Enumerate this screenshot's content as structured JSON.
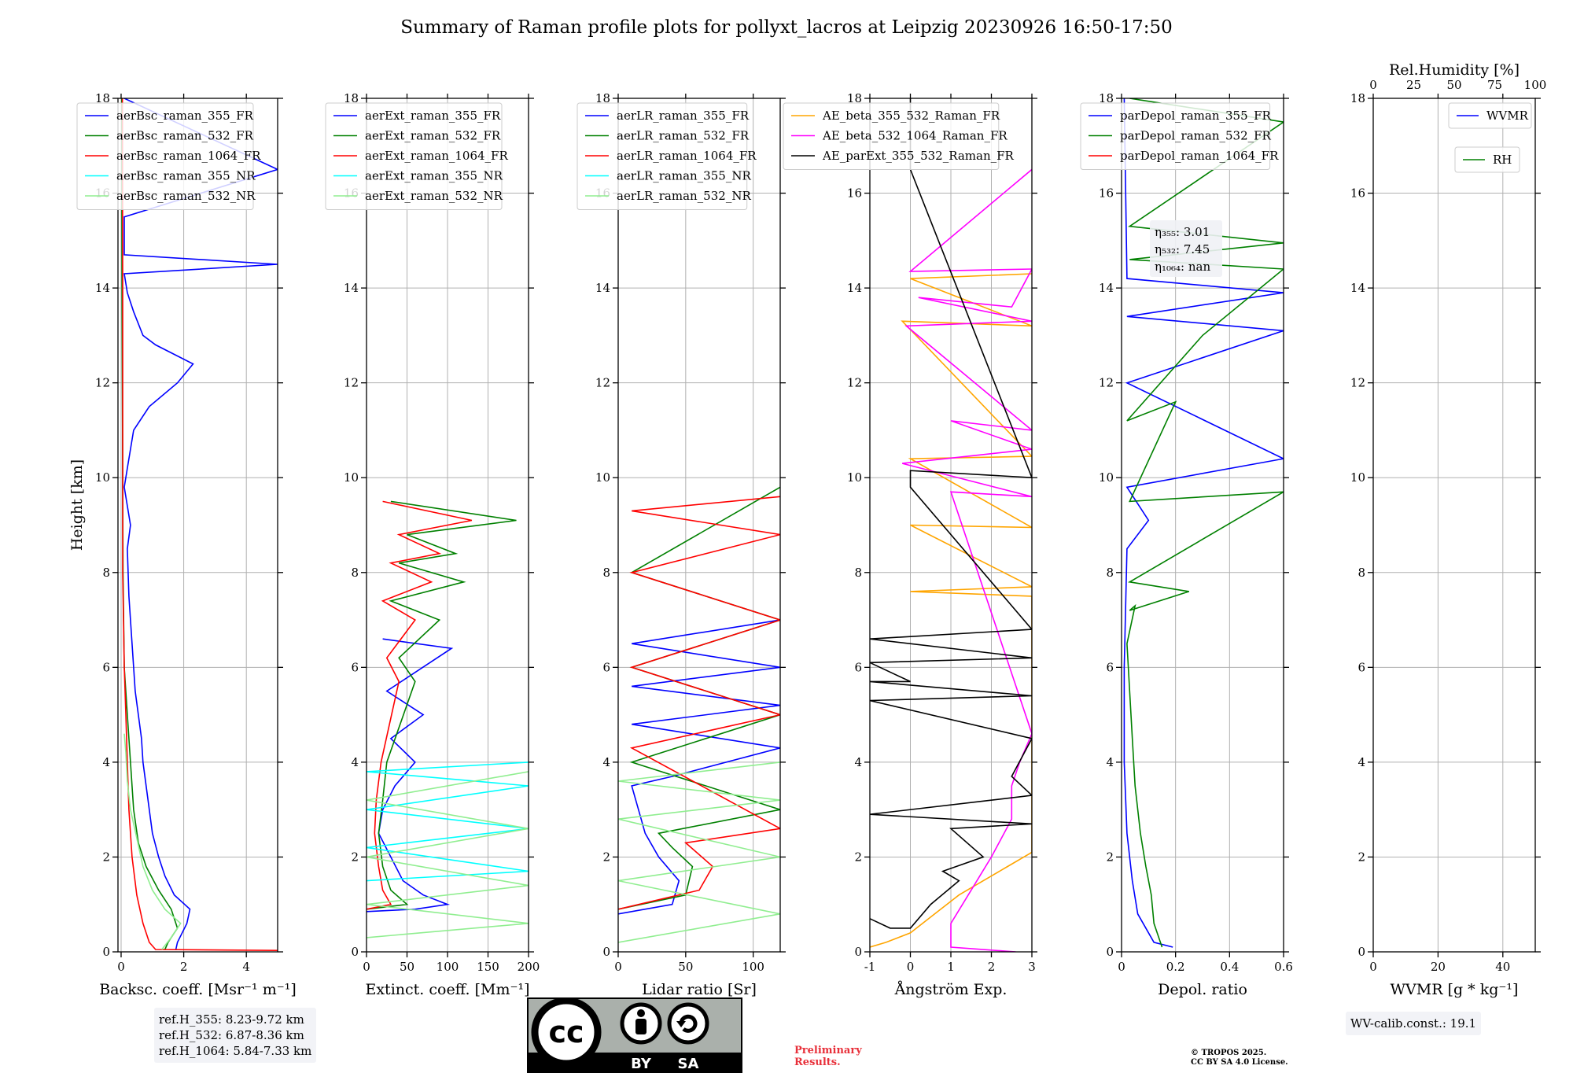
{
  "figure": {
    "title": "Summary of Raman profile plots for pollyxt_lacros at Leipzig 20230926 16:50-17:50",
    "ylabel": "Height [km]"
  },
  "chart_data": [
    {
      "type": "line",
      "xlabel": "Backsc. coeff. [Msr⁻¹ m⁻¹]",
      "ylabel": "Height [km]",
      "xlim": [
        -0.1,
        5
      ],
      "ylim": [
        0,
        18
      ],
      "xticks": [
        0,
        2,
        4
      ],
      "yticks": [
        0,
        2,
        4,
        6,
        8,
        10,
        12,
        14,
        16,
        18
      ],
      "grid": true,
      "legend": "top",
      "series": [
        {
          "name": "aerBsc_raman_355_FR",
          "color": "#0000ff",
          "x": [
            1.75,
            1.8,
            2.1,
            2.2,
            1.7,
            1.4,
            1.2,
            1.0,
            0.9,
            0.8,
            0.7,
            0.65,
            0.45,
            0.35,
            0.25,
            0.2,
            0.3,
            0.1,
            0.2,
            0.4,
            0.9,
            1.8,
            2.3,
            1.1,
            0.7,
            0.4,
            0.2,
            0.1,
            5.0,
            0.1,
            0.1,
            5.0,
            0.1
          ],
          "y": [
            0.05,
            0.2,
            0.6,
            0.9,
            1.2,
            1.6,
            2.0,
            2.5,
            3.0,
            3.5,
            4.0,
            4.5,
            5.5,
            6.5,
            7.5,
            8.5,
            9.0,
            9.8,
            10.2,
            11.0,
            11.5,
            12.0,
            12.4,
            12.8,
            13.0,
            13.5,
            13.9,
            14.3,
            14.5,
            14.7,
            15.5,
            16.5,
            18.0
          ]
        },
        {
          "name": "aerBsc_raman_532_FR",
          "color": "#008000",
          "x": [
            1.4,
            1.5,
            1.8,
            1.6,
            1.2,
            0.8,
            0.55,
            0.4,
            0.3,
            0.2,
            0.1,
            0.06,
            0.05,
            0.03,
            0.02
          ],
          "y": [
            0.05,
            0.2,
            0.5,
            0.9,
            1.3,
            1.8,
            2.3,
            3.0,
            4.0,
            5.0,
            6.0,
            8.0,
            10.0,
            14.0,
            18.0
          ]
        },
        {
          "name": "aerBsc_raman_1064_FR",
          "color": "#ff0000",
          "x": [
            5.0,
            1.1,
            0.9,
            0.7,
            0.5,
            0.35,
            0.25,
            0.2,
            0.15,
            0.1,
            0.05,
            0.05,
            0.05,
            0.04
          ],
          "y": [
            0.03,
            0.05,
            0.2,
            0.6,
            1.2,
            2.0,
            3.0,
            4.0,
            5.0,
            6.0,
            8.0,
            10.0,
            14.0,
            18.0
          ]
        },
        {
          "name": "aerBsc_raman_355_NR",
          "color": "#00ffff",
          "x": [],
          "y": []
        },
        {
          "name": "aerBsc_raman_532_NR",
          "color": "#90ee90",
          "x": [
            1.3,
            1.6,
            1.9,
            1.4,
            1.0,
            0.7,
            0.5,
            0.3,
            0.2,
            0.15,
            0.1
          ],
          "y": [
            0.05,
            0.3,
            0.6,
            0.9,
            1.3,
            1.8,
            2.4,
            3.0,
            3.6,
            4.2,
            4.6
          ]
        }
      ]
    },
    {
      "type": "line",
      "xlabel": "Extinct. coeff. [Mm⁻¹]",
      "ylabel": "",
      "xlim": [
        0,
        200
      ],
      "ylim": [
        0,
        18
      ],
      "xticks": [
        0,
        50,
        100,
        150,
        200
      ],
      "yticks": [
        0,
        2,
        4,
        6,
        8,
        10,
        12,
        14,
        16,
        18
      ],
      "grid": true,
      "legend": "top",
      "series": [
        {
          "name": "aerExt_raman_355_FR",
          "color": "#0000ff",
          "x": [
            0,
            60,
            100,
            70,
            45,
            30,
            15,
            20,
            35,
            60,
            30,
            70,
            25,
            105,
            20
          ],
          "y": [
            0.85,
            0.9,
            1.0,
            1.2,
            1.5,
            2.0,
            2.5,
            3.0,
            3.5,
            4.0,
            4.5,
            5.0,
            5.5,
            6.4,
            6.6
          ]
        },
        {
          "name": "aerExt_raman_532_FR",
          "color": "#008000",
          "x": [
            0,
            50,
            30,
            20,
            15,
            20,
            25,
            60,
            40,
            90,
            30,
            120,
            40,
            110,
            50,
            185,
            30
          ],
          "y": [
            0.9,
            1.0,
            1.3,
            1.8,
            2.5,
            3.2,
            4.0,
            5.7,
            6.2,
            7.0,
            7.4,
            7.8,
            8.2,
            8.4,
            8.8,
            9.1,
            9.5
          ]
        },
        {
          "name": "aerExt_raman_1064_FR",
          "color": "#ff0000",
          "x": [
            0,
            30,
            20,
            15,
            10,
            12,
            18,
            40,
            25,
            60,
            20,
            80,
            30,
            90,
            40,
            130,
            20
          ],
          "y": [
            0.9,
            1.0,
            1.3,
            1.8,
            2.5,
            3.2,
            4.0,
            5.7,
            6.2,
            7.0,
            7.4,
            7.8,
            8.2,
            8.4,
            8.8,
            9.1,
            9.5
          ]
        },
        {
          "name": "aerExt_raman_355_NR",
          "color": "#00ffff",
          "x": [
            0,
            200,
            0,
            200,
            0,
            200,
            0,
            200
          ],
          "y": [
            1.5,
            1.7,
            2.2,
            2.6,
            3.0,
            3.5,
            3.8,
            4.0
          ]
        },
        {
          "name": "aerExt_raman_532_NR",
          "color": "#90ee90",
          "x": [
            0,
            200,
            0,
            200,
            0,
            200,
            0,
            200
          ],
          "y": [
            0.3,
            0.6,
            1.0,
            1.4,
            2.0,
            2.6,
            3.2,
            3.8
          ]
        }
      ]
    },
    {
      "type": "line",
      "xlabel": "Lidar ratio [Sr]",
      "ylabel": "",
      "xlim": [
        0,
        120
      ],
      "ylim": [
        0,
        18
      ],
      "xticks": [
        0,
        50,
        100
      ],
      "yticks": [
        0,
        2,
        4,
        6,
        8,
        10,
        12,
        14,
        16,
        18
      ],
      "grid": true,
      "legend": "top",
      "series": [
        {
          "name": "aerLR_raman_355_FR",
          "color": "#0000ff",
          "x": [
            0,
            40,
            45,
            30,
            20,
            15,
            10,
            40,
            120,
            10,
            120,
            10,
            120,
            10,
            120
          ],
          "y": [
            0.8,
            1.0,
            1.5,
            2.0,
            2.5,
            3.0,
            3.5,
            3.7,
            4.3,
            4.8,
            5.2,
            5.6,
            6.0,
            6.5,
            7.0
          ]
        },
        {
          "name": "aerLR_raman_532_FR",
          "color": "#008000",
          "x": [
            0,
            50,
            55,
            40,
            30,
            120,
            10,
            120,
            10,
            120,
            10,
            120
          ],
          "y": [
            0.9,
            1.2,
            1.8,
            2.2,
            2.5,
            3.0,
            4.0,
            5.0,
            6.0,
            7.0,
            8.0,
            9.8
          ]
        },
        {
          "name": "aerLR_raman_1064_FR",
          "color": "#ff0000",
          "x": [
            0,
            60,
            70,
            50,
            120,
            10,
            120,
            10,
            120,
            10,
            120,
            10,
            120
          ],
          "y": [
            0.9,
            1.3,
            1.8,
            2.3,
            2.6,
            4.3,
            5.0,
            6.0,
            7.0,
            8.0,
            8.8,
            9.3,
            9.6
          ]
        },
        {
          "name": "aerLR_raman_355_NR",
          "color": "#00ffff",
          "x": [],
          "y": []
        },
        {
          "name": "aerLR_raman_532_NR",
          "color": "#90ee90",
          "x": [
            0,
            120,
            0,
            120,
            0,
            120,
            0,
            120
          ],
          "y": [
            0.2,
            0.8,
            1.5,
            2.0,
            2.8,
            3.2,
            3.6,
            4.0
          ]
        }
      ]
    },
    {
      "type": "line",
      "xlabel": "Ångström Exp.",
      "ylabel": "",
      "xlim": [
        -1,
        3
      ],
      "ylim": [
        0,
        18
      ],
      "xticks": [
        -1,
        0,
        1,
        2,
        3
      ],
      "yticks": [
        0,
        2,
        4,
        6,
        8,
        10,
        12,
        14,
        16,
        18
      ],
      "grid": true,
      "legend": "top",
      "series": [
        {
          "name": "AE_beta_355_532_Raman_FR",
          "color": "#ffa500",
          "x": [
            -1.0,
            -0.6,
            0.0,
            0.6,
            1.2,
            1.8,
            2.4,
            3.0,
            3.0,
            0.0,
            3.0,
            0.0,
            3.0,
            0.0,
            3.0,
            -0.2,
            3.0,
            0.0,
            3.0
          ],
          "y": [
            0.1,
            0.2,
            0.4,
            0.8,
            1.2,
            1.5,
            1.8,
            2.1,
            7.5,
            7.6,
            7.7,
            9.0,
            8.95,
            10.4,
            10.45,
            13.3,
            13.2,
            14.2,
            14.3
          ]
        },
        {
          "name": "AE_beta_532_1064_Raman_FR",
          "color": "#ff00ff",
          "x": [
            2.6,
            1.0,
            1.0,
            1.5,
            2.0,
            2.5,
            2.5,
            2.7,
            3.0,
            1.0,
            3.0,
            -0.2,
            3.0,
            1.0,
            3.0,
            -0.1,
            3.0,
            0.2,
            2.5,
            3.0,
            0.0,
            3.0
          ],
          "y": [
            0.0,
            0.1,
            0.6,
            1.3,
            2.0,
            2.8,
            3.5,
            4.0,
            4.6,
            9.7,
            9.6,
            10.3,
            10.6,
            11.2,
            11.0,
            13.2,
            13.3,
            13.8,
            13.6,
            14.4,
            14.35,
            16.5
          ]
        },
        {
          "name": "AE_parExt_355_532_Raman_FR",
          "color": "#000000",
          "x": [
            -1.0,
            -0.5,
            0.0,
            0.5,
            1.2,
            0.8,
            1.8,
            1.0,
            3.0,
            -1.0,
            3.0,
            2.5,
            3.0,
            -1.0,
            3.0,
            -1.0,
            0.0,
            -1.0,
            3.0,
            -1.0,
            3.0,
            0.0,
            0.0,
            3.0,
            0.0,
            0.0
          ],
          "y": [
            0.7,
            0.5,
            0.5,
            1.0,
            1.5,
            1.7,
            2.0,
            2.6,
            2.7,
            2.9,
            3.3,
            3.7,
            4.5,
            5.3,
            5.4,
            5.7,
            5.7,
            6.1,
            6.2,
            6.6,
            6.8,
            9.8,
            10.15,
            10.0,
            16.5,
            18.0
          ]
        }
      ]
    },
    {
      "type": "line",
      "xlabel": "Depol. ratio",
      "ylabel": "",
      "xlim": [
        0,
        0.6
      ],
      "ylim": [
        0,
        18
      ],
      "xticks": [
        0.0,
        0.2,
        0.4,
        0.6
      ],
      "yticks": [
        0,
        2,
        4,
        6,
        8,
        10,
        12,
        14,
        16,
        18
      ],
      "grid": true,
      "legend": "top",
      "annotations": [
        "η₃₅₅: 3.01",
        "η₅₃₂: 7.45",
        "η₁₀₆₄: nan"
      ],
      "series": [
        {
          "name": "parDepol_raman_355_FR",
          "color": "#0000ff",
          "x": [
            0.19,
            0.12,
            0.06,
            0.04,
            0.02,
            0.01,
            0.01,
            0.02,
            0.1,
            0.02,
            0.6,
            0.02,
            0.6,
            0.02,
            0.6,
            0.02,
            0.01
          ],
          "y": [
            0.1,
            0.2,
            0.8,
            1.5,
            2.5,
            4.0,
            6.0,
            8.5,
            9.1,
            9.8,
            10.4,
            12.0,
            13.1,
            13.4,
            13.9,
            14.2,
            18.0
          ]
        },
        {
          "name": "parDepol_raman_532_FR",
          "color": "#008000",
          "x": [
            0.15,
            0.12,
            0.11,
            0.09,
            0.07,
            0.05,
            0.04,
            0.03,
            0.02,
            0.05,
            0.03,
            0.25,
            0.03,
            0.6,
            0.03,
            0.2,
            0.02,
            0.3,
            0.6,
            0.03,
            0.6,
            0.03,
            0.6,
            0.03
          ],
          "y": [
            0.1,
            0.6,
            1.2,
            1.8,
            2.5,
            3.5,
            4.5,
            5.5,
            6.5,
            7.3,
            7.2,
            7.6,
            7.8,
            9.7,
            9.5,
            11.6,
            11.2,
            13.0,
            14.4,
            14.6,
            14.95,
            15.3,
            17.5,
            18.0
          ]
        },
        {
          "name": "parDepol_raman_1064_FR",
          "color": "#ff0000",
          "x": [],
          "y": []
        }
      ]
    },
    {
      "type": "line",
      "xlabel": "WVMR [g * kg⁻¹]",
      "ylabel": "",
      "top_xlabel": "Rel.Humidity [%]",
      "xlim": [
        0,
        50
      ],
      "ylim": [
        0,
        18
      ],
      "xticks": [
        0,
        20,
        40
      ],
      "top_xlim": [
        0,
        100
      ],
      "top_xticks": [
        0,
        25,
        50,
        75,
        100
      ],
      "yticks": [
        0,
        2,
        4,
        6,
        8,
        10,
        12,
        14,
        16,
        18
      ],
      "grid": true,
      "legend": "top-right",
      "series": [
        {
          "name": "WVMR",
          "color": "#0000ff",
          "x": [],
          "y": []
        },
        {
          "name": "RH",
          "color": "#008000",
          "x": [],
          "y": []
        }
      ]
    }
  ],
  "notes": {
    "ref_heights": [
      "ref.H_355: 8.23-9.72 km",
      "ref.H_532: 6.87-8.36 km",
      "ref.H_1064: 5.84-7.33 km"
    ],
    "preliminary": [
      "Preliminary",
      "Results."
    ],
    "copyright": [
      "© TROPOS 2025.",
      "CC BY SA 4.0 License."
    ],
    "wv_calib": "WV-calib.const.: 19.1",
    "license_badge": {
      "by": "BY",
      "sa": "SA",
      "cc": "cc"
    }
  }
}
